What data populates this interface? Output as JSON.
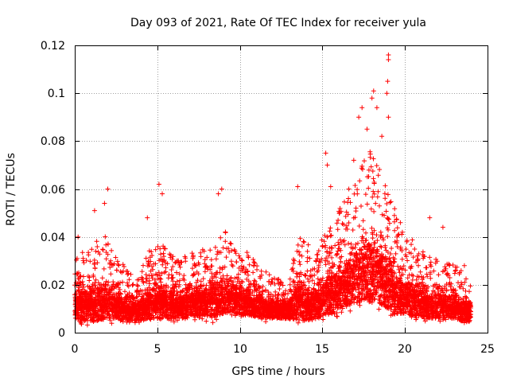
{
  "chart_data": {
    "type": "scatter",
    "title": "Day 093 of 2021, Rate Of TEC Index for receiver yula",
    "xlabel": "GPS time / hours",
    "ylabel": "ROTI / TECUs",
    "xlim": [
      0,
      25
    ],
    "ylim": [
      0,
      0.12
    ],
    "x_ticks": [
      0,
      5,
      10,
      15,
      20,
      25
    ],
    "x_tick_labels": [
      "0",
      "5",
      "10",
      "15",
      "20",
      "25"
    ],
    "y_ticks": [
      0,
      0.02,
      0.04,
      0.06,
      0.08,
      0.1,
      0.12
    ],
    "y_tick_labels": [
      "0",
      "0.02",
      "0.04",
      "0.06",
      "0.08",
      "0.1",
      "0.12"
    ],
    "grid": true,
    "marker": "+",
    "series_color": "#ff0000",
    "x_range_of_data": [
      0,
      24
    ],
    "envelope": {
      "hours": [
        0,
        0.5,
        1,
        1.5,
        2,
        2.5,
        3,
        3.5,
        4,
        4.5,
        5,
        5.5,
        6,
        6.5,
        7,
        7.5,
        8,
        8.5,
        9,
        9.5,
        10,
        10.5,
        11,
        11.5,
        12,
        12.5,
        13,
        13.5,
        14,
        14.5,
        15,
        15.5,
        16,
        16.5,
        17,
        17.5,
        18,
        18.5,
        19,
        19.5,
        20,
        20.5,
        21,
        21.5,
        22,
        22.5,
        23,
        23.5,
        24
      ],
      "typical_max": [
        0.03,
        0.034,
        0.038,
        0.04,
        0.042,
        0.032,
        0.028,
        0.024,
        0.026,
        0.034,
        0.04,
        0.036,
        0.032,
        0.032,
        0.034,
        0.034,
        0.036,
        0.04,
        0.044,
        0.038,
        0.034,
        0.034,
        0.03,
        0.026,
        0.024,
        0.022,
        0.022,
        0.04,
        0.038,
        0.036,
        0.04,
        0.046,
        0.052,
        0.056,
        0.064,
        0.072,
        0.078,
        0.068,
        0.06,
        0.05,
        0.044,
        0.04,
        0.036,
        0.032,
        0.032,
        0.03,
        0.028,
        0.026,
        0.024
      ],
      "typical_min": [
        0.006,
        0.005,
        0.005,
        0.005,
        0.006,
        0.006,
        0.005,
        0.005,
        0.005,
        0.006,
        0.006,
        0.006,
        0.006,
        0.006,
        0.007,
        0.007,
        0.007,
        0.007,
        0.008,
        0.008,
        0.008,
        0.007,
        0.007,
        0.006,
        0.006,
        0.006,
        0.006,
        0.005,
        0.005,
        0.006,
        0.007,
        0.008,
        0.01,
        0.012,
        0.012,
        0.014,
        0.014,
        0.012,
        0.01,
        0.008,
        0.008,
        0.007,
        0.007,
        0.006,
        0.006,
        0.006,
        0.006,
        0.005,
        0.005
      ]
    },
    "notable_points": [
      {
        "x": 0.2,
        "y": 0.04
      },
      {
        "x": 1.2,
        "y": 0.051
      },
      {
        "x": 1.8,
        "y": 0.054
      },
      {
        "x": 2.0,
        "y": 0.06
      },
      {
        "x": 4.4,
        "y": 0.048
      },
      {
        "x": 5.1,
        "y": 0.062
      },
      {
        "x": 5.3,
        "y": 0.058
      },
      {
        "x": 8.7,
        "y": 0.058
      },
      {
        "x": 8.9,
        "y": 0.06
      },
      {
        "x": 13.5,
        "y": 0.061
      },
      {
        "x": 15.2,
        "y": 0.075
      },
      {
        "x": 15.3,
        "y": 0.07
      },
      {
        "x": 15.5,
        "y": 0.061
      },
      {
        "x": 16.6,
        "y": 0.06
      },
      {
        "x": 16.9,
        "y": 0.072
      },
      {
        "x": 17.2,
        "y": 0.09
      },
      {
        "x": 17.4,
        "y": 0.094
      },
      {
        "x": 17.7,
        "y": 0.085
      },
      {
        "x": 18.0,
        "y": 0.098
      },
      {
        "x": 18.1,
        "y": 0.101
      },
      {
        "x": 18.3,
        "y": 0.094
      },
      {
        "x": 18.6,
        "y": 0.082
      },
      {
        "x": 18.9,
        "y": 0.1
      },
      {
        "x": 18.95,
        "y": 0.105
      },
      {
        "x": 19.0,
        "y": 0.116
      },
      {
        "x": 19.0,
        "y": 0.114
      },
      {
        "x": 19.0,
        "y": 0.09
      },
      {
        "x": 21.5,
        "y": 0.048
      },
      {
        "x": 22.3,
        "y": 0.044
      },
      {
        "x": 23.6,
        "y": 0.028
      }
    ]
  }
}
